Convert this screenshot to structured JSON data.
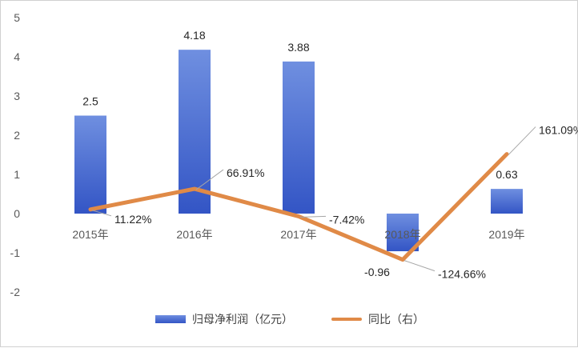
{
  "chart_data": {
    "type": "bar+line",
    "categories": [
      "2015年",
      "2016年",
      "2017年",
      "2018年",
      "2019年"
    ],
    "series": [
      {
        "name": "归母净利润（亿元）",
        "type": "bar",
        "axis": "left",
        "values": [
          2.5,
          4.18,
          3.88,
          -0.96,
          0.63
        ],
        "labels": [
          "2.5",
          "4.18",
          "3.88",
          "-0.96",
          "0.63"
        ]
      },
      {
        "name": "同比（右）",
        "type": "line",
        "axis": "right",
        "values": [
          11.22,
          66.91,
          -7.42,
          -124.66,
          161.09
        ],
        "labels": [
          "11.22%",
          "66.91%",
          "-7.42%",
          "-124.66%",
          "161.09%"
        ]
      }
    ],
    "y_left": {
      "ylim": [
        -2,
        5
      ],
      "ticks": [
        "-2",
        "-1",
        "0",
        "1",
        "2",
        "3",
        "4",
        "5"
      ]
    },
    "grid": false,
    "legend_position": "bottom"
  },
  "colors": {
    "bar_top": "#6f8fe0",
    "bar_bottom": "#3355c5",
    "line": "#e08a47",
    "leader": "#a6a6a6"
  }
}
